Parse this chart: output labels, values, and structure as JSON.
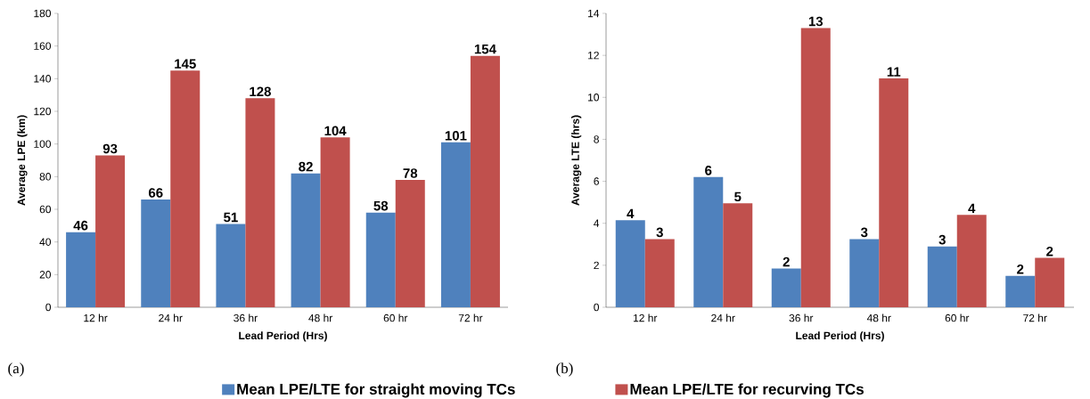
{
  "chart_data": [
    {
      "type": "bar",
      "categories": [
        "12 hr",
        "24 hr",
        "36 hr",
        "48 hr",
        "60 hr",
        "72 hr"
      ],
      "xlabel": "Lead Period (Hrs)",
      "ylabel": "Average LPE (km)",
      "ylim": [
        0,
        180
      ],
      "yticks": [
        0,
        20,
        40,
        60,
        80,
        100,
        120,
        140,
        160,
        180
      ],
      "data_labels": true,
      "legend": "bottom",
      "annotations": [
        "(a)"
      ],
      "series": [
        {
          "name": "Mean LPE/LTE for straight moving TCs",
          "color": "#4f81bd",
          "values": [
            46,
            66,
            51,
            82,
            58,
            101
          ]
        },
        {
          "name": "Mean LPE/LTE for recurving TCs",
          "color": "#c0504d",
          "values": [
            93,
            145,
            128,
            104,
            78,
            154
          ]
        }
      ]
    },
    {
      "type": "bar",
      "categories": [
        "12 hr",
        "24 hr",
        "36 hr",
        "48 hr",
        "60 hr",
        "72 hr"
      ],
      "xlabel": "Lead Period (Hrs)",
      "ylabel": "Average LTE (hrs)",
      "ylim": [
        0,
        14
      ],
      "yticks": [
        0,
        2,
        4,
        6,
        8,
        10,
        12,
        14
      ],
      "annotations": [
        "(b)"
      ],
      "series": [
        {
          "color": "#4f81bd",
          "values": [
            4.15,
            6.2,
            1.85,
            3.25,
            2.9,
            1.5
          ],
          "value_labels": [
            "4",
            "6",
            "2",
            "3",
            "3",
            "2"
          ]
        },
        {
          "color": "#c0504d",
          "values": [
            3.25,
            4.95,
            13.3,
            10.9,
            4.4,
            2.35
          ],
          "value_labels": [
            "3",
            "5",
            "13",
            "11",
            "4",
            "2"
          ]
        }
      ]
    }
  ]
}
